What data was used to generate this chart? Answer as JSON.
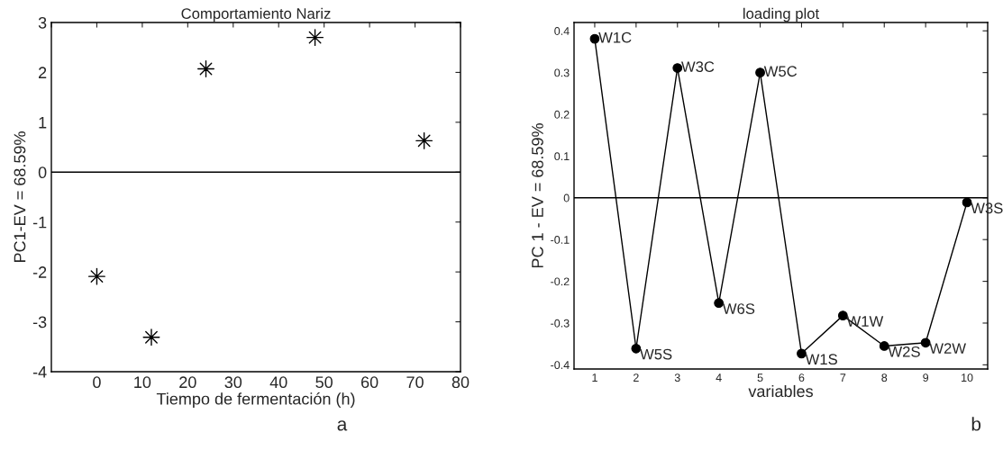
{
  "chart_data": [
    {
      "type": "scatter",
      "title": "Comportamiento Nariz",
      "xlabel": "Tiempo de fermentación (h)",
      "ylabel": "PC1-EV = 68.59%",
      "x": [
        0,
        12,
        24,
        48,
        72
      ],
      "series": [
        {
          "color": "#000000",
          "values": [
            -2.09,
            -3.31,
            2.07,
            2.7,
            0.63
          ]
        }
      ],
      "marker": "star",
      "xlim": [
        -10,
        80
      ],
      "xticks": [
        {
          "value": -10,
          "label": null
        },
        0,
        10,
        20,
        30,
        40,
        50,
        60,
        70,
        80
      ],
      "ylim": [
        -4,
        3
      ],
      "yticks": [
        -4,
        -3,
        -2,
        -1,
        0,
        1,
        2,
        3
      ],
      "ref_lines": [
        {
          "axis": "y",
          "value": 0,
          "color": "#000000"
        }
      ],
      "grid": false,
      "annotations": [
        "a"
      ]
    },
    {
      "type": "line",
      "title": "loading plot",
      "xlabel": "variables",
      "ylabel": "PC 1 - EV = 68.59%",
      "x": [
        1,
        2,
        3,
        4,
        5,
        6,
        7,
        8,
        9,
        10
      ],
      "series": [
        {
          "color": "#000000",
          "values": [
            0.381,
            -0.361,
            0.311,
            -0.252,
            0.3,
            -0.373,
            -0.282,
            -0.355,
            -0.347,
            -0.011
          ]
        }
      ],
      "marker": "circle",
      "line_style": "solid",
      "xlim": [
        0.5,
        10.5
      ],
      "xticks": [
        1,
        2,
        3,
        4,
        5,
        6,
        7,
        8,
        9,
        10
      ],
      "ylim": [
        -0.41,
        0.42
      ],
      "yticks": [
        -0.4,
        -0.3,
        -0.2,
        -0.1,
        0,
        0.1,
        0.2,
        0.3,
        0.4
      ],
      "ref_lines": [
        {
          "axis": "y",
          "value": 0,
          "color": "#000000"
        }
      ],
      "grid": false,
      "annotations": [
        {
          "text": "W1C",
          "x": 1,
          "y": 0.381
        },
        {
          "text": "W5S",
          "x": 2,
          "y": -0.361
        },
        {
          "text": "W3C",
          "x": 3,
          "y": 0.311
        },
        {
          "text": "W6S",
          "x": 4,
          "y": -0.252
        },
        {
          "text": "W5C",
          "x": 5,
          "y": 0.3
        },
        {
          "text": "W1S",
          "x": 6,
          "y": -0.373
        },
        {
          "text": "W1W",
          "x": 7,
          "y": -0.282
        },
        {
          "text": "W2S",
          "x": 8,
          "y": -0.355
        },
        {
          "text": "W2W",
          "x": 9,
          "y": -0.347
        },
        {
          "text": "W3S",
          "x": 10,
          "y": -0.011
        },
        "b"
      ]
    }
  ]
}
